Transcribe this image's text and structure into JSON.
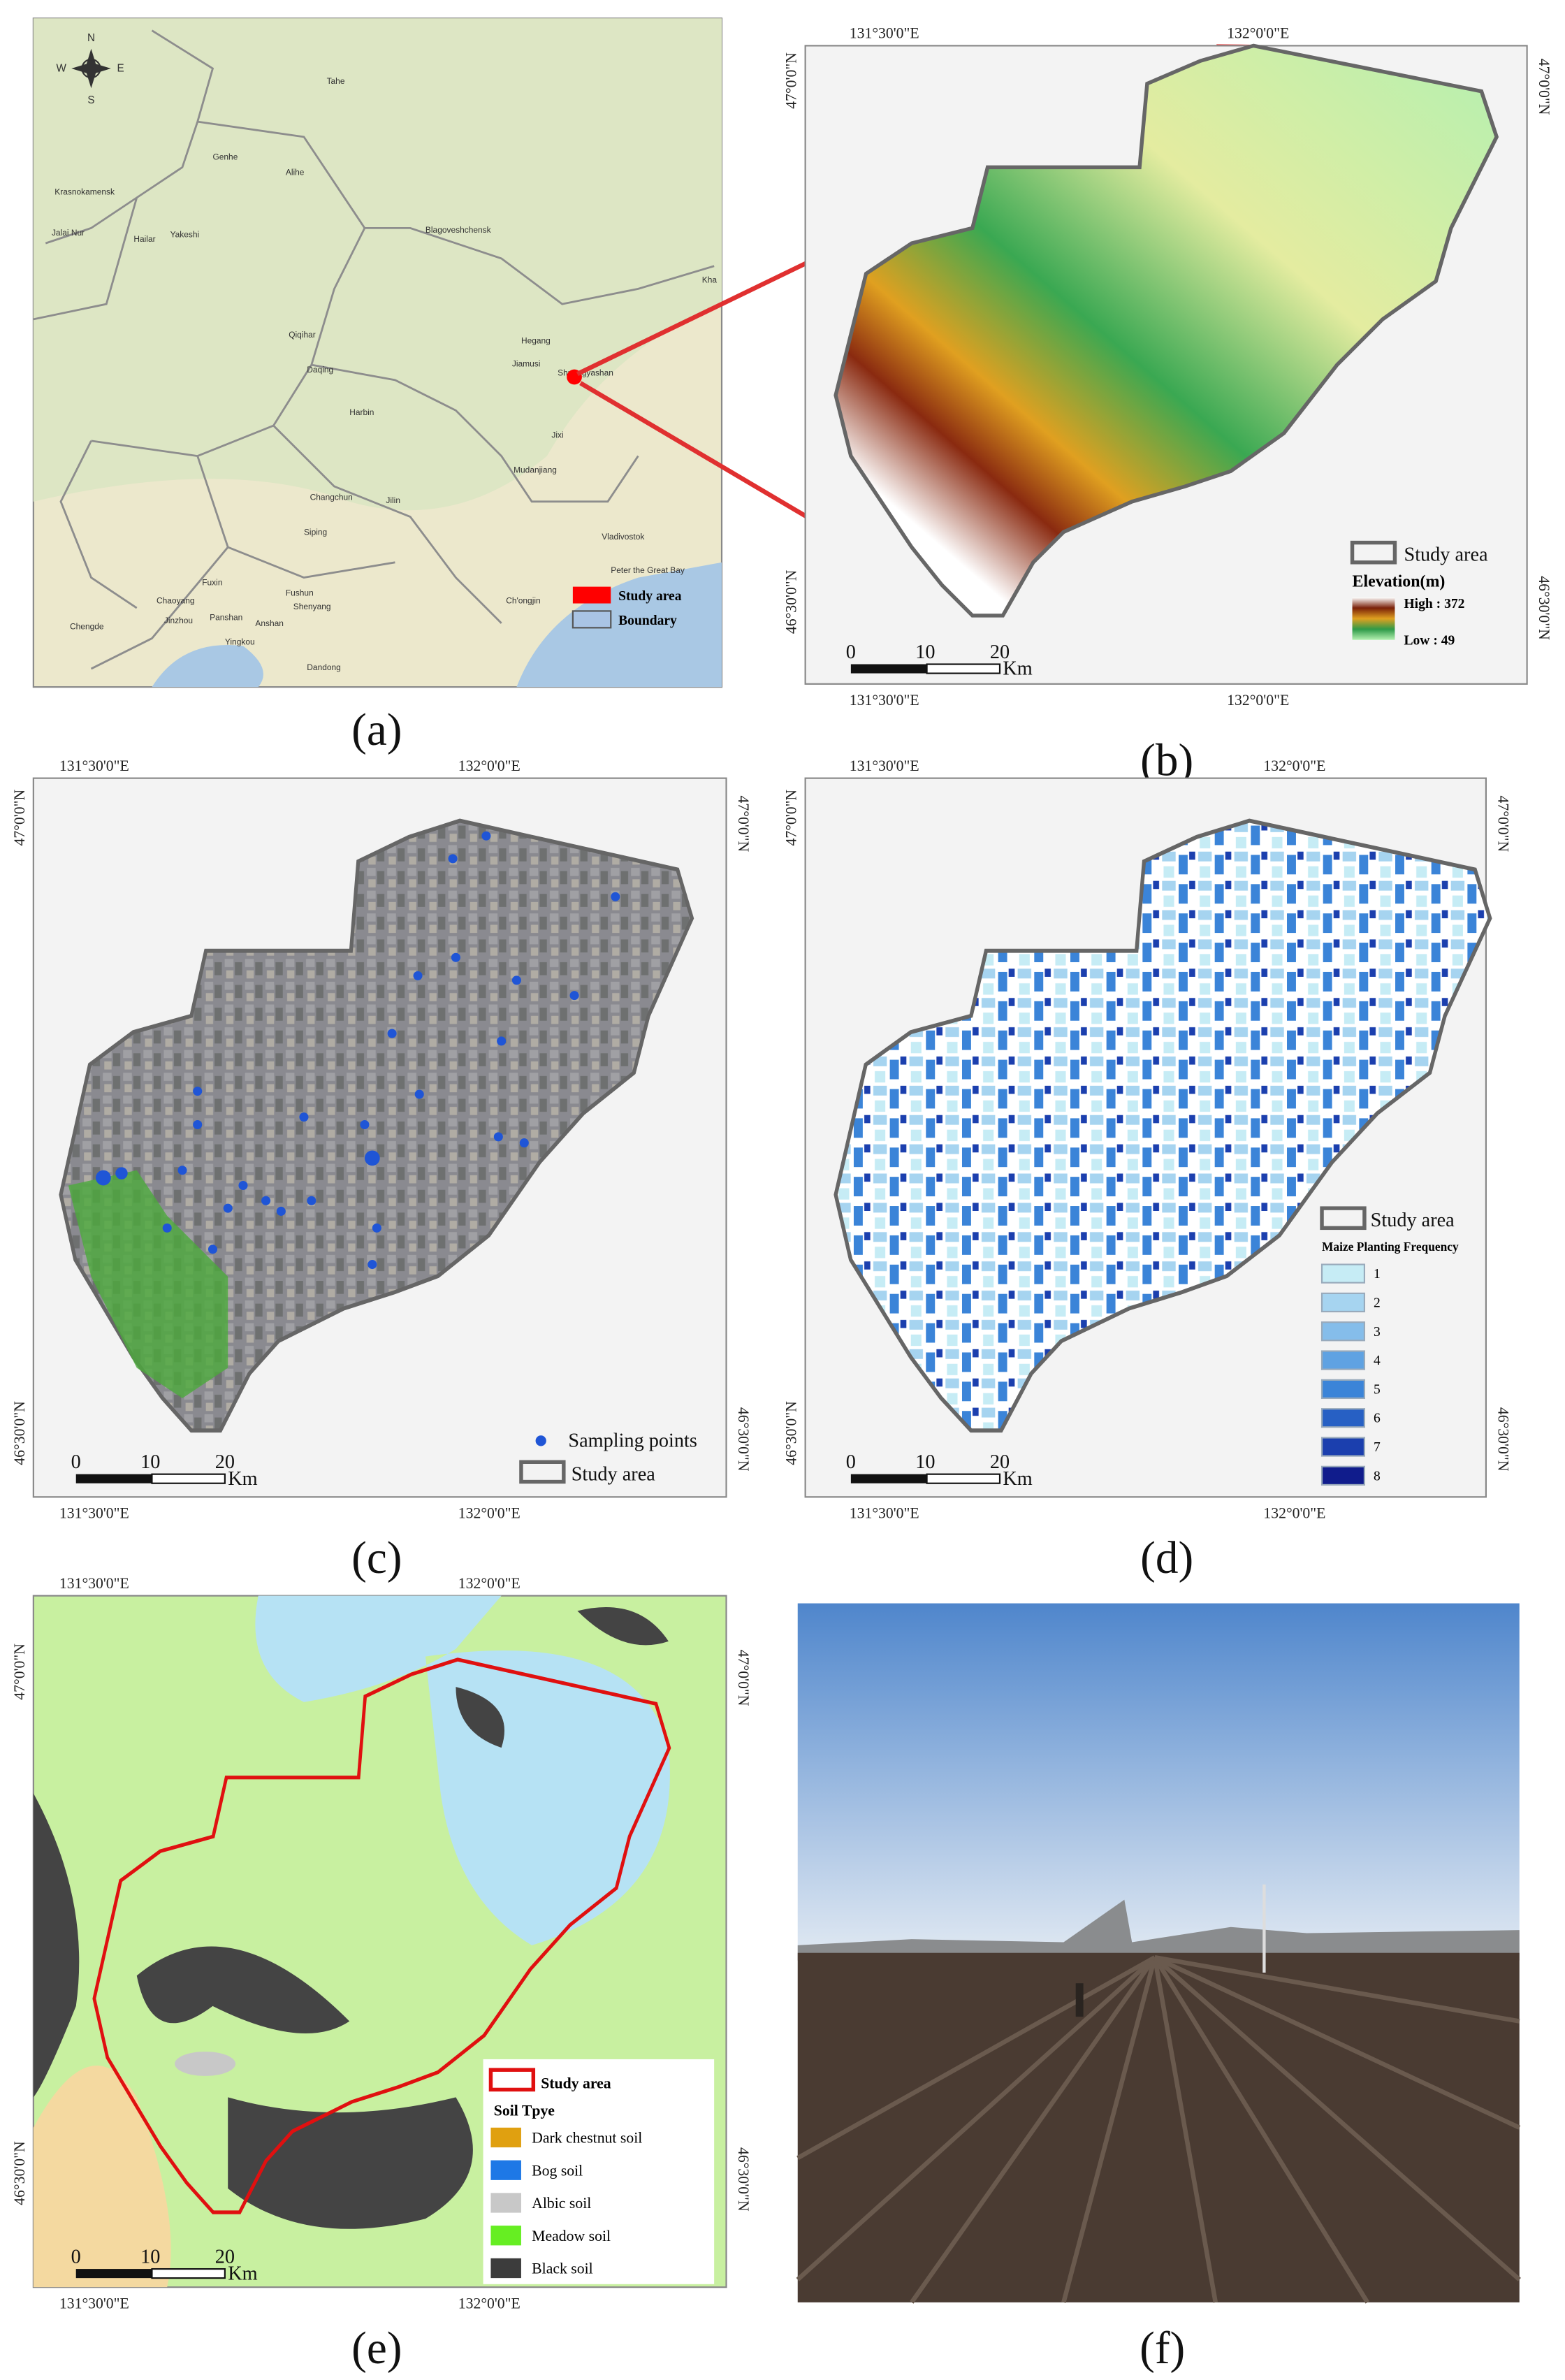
{
  "graticule": {
    "lon1": "131°30'0\"E",
    "lon2": "132°0'0\"E",
    "lat1": "47°0'0\"N",
    "lat2": "46°30'0\"N"
  },
  "scale_bar": {
    "ticks": [
      "0",
      "10",
      "20"
    ],
    "unit": "Km"
  },
  "panel_a": {
    "label": "(a)",
    "compass": {
      "n": "N",
      "s": "S",
      "w": "W",
      "e": "E"
    },
    "places": [
      "Tahe",
      "Genhe",
      "Alihe",
      "Krasnokamensk",
      "Jalai Nur",
      "Hailar",
      "Yakeshi",
      "Blagoveshchensk",
      "Qiqihar",
      "Daqing",
      "Harbin",
      "Hegang",
      "Jiamusi",
      "Shuangyashan",
      "Jixi",
      "Mudanjiang",
      "Changchun",
      "Jilin",
      "Siping",
      "Vladivostok",
      "Peter the Great Bay",
      "Fuxin",
      "Chaoyang",
      "Fushun",
      "Shenyang",
      "Jinzhou",
      "Panshan",
      "Anshan",
      "Yingkou",
      "Dandong",
      "Ch'ongjin",
      "Chengde",
      "Kha"
    ],
    "legend": [
      {
        "name": "Study area",
        "color": "#ff0000"
      },
      {
        "name": "Boundary",
        "color": "#a9c4e4"
      }
    ]
  },
  "panel_b": {
    "label": "(b)",
    "legend_outline": "Study area",
    "elevation_title": "Elevation(m)",
    "high": "High : 372",
    "low": "Low : 49"
  },
  "panel_c": {
    "label": "(c)",
    "legend_points": "Sampling points",
    "legend_outline": "Study area"
  },
  "panel_d": {
    "label": "(d)",
    "legend_outline": "Study area",
    "legend_title": "Maize Planting Frequency",
    "classes": [
      {
        "name": "1",
        "color": "#c6ecf5"
      },
      {
        "name": "2",
        "color": "#a6d4f0"
      },
      {
        "name": "3",
        "color": "#85bdea"
      },
      {
        "name": "4",
        "color": "#5fa2e2"
      },
      {
        "name": "5",
        "color": "#3b84d8"
      },
      {
        "name": "6",
        "color": "#2760c4"
      },
      {
        "name": "7",
        "color": "#1b3fae"
      },
      {
        "name": "8",
        "color": "#101c8c"
      }
    ]
  },
  "panel_e": {
    "label": "(e)",
    "legend_outline": "Study area",
    "legend_title": "Soil Tpye",
    "classes": [
      {
        "name": "Dark chestnut soil",
        "color": "#e0a010"
      },
      {
        "name": "Bog soil",
        "color": "#1e78e6"
      },
      {
        "name": "Albic soil",
        "color": "#c8c8c8"
      },
      {
        "name": "Meadow soil",
        "color": "#66ee22"
      },
      {
        "name": "Black soil",
        "color": "#3c3c3c"
      }
    ]
  },
  "panel_f": {
    "label": "(f)"
  }
}
